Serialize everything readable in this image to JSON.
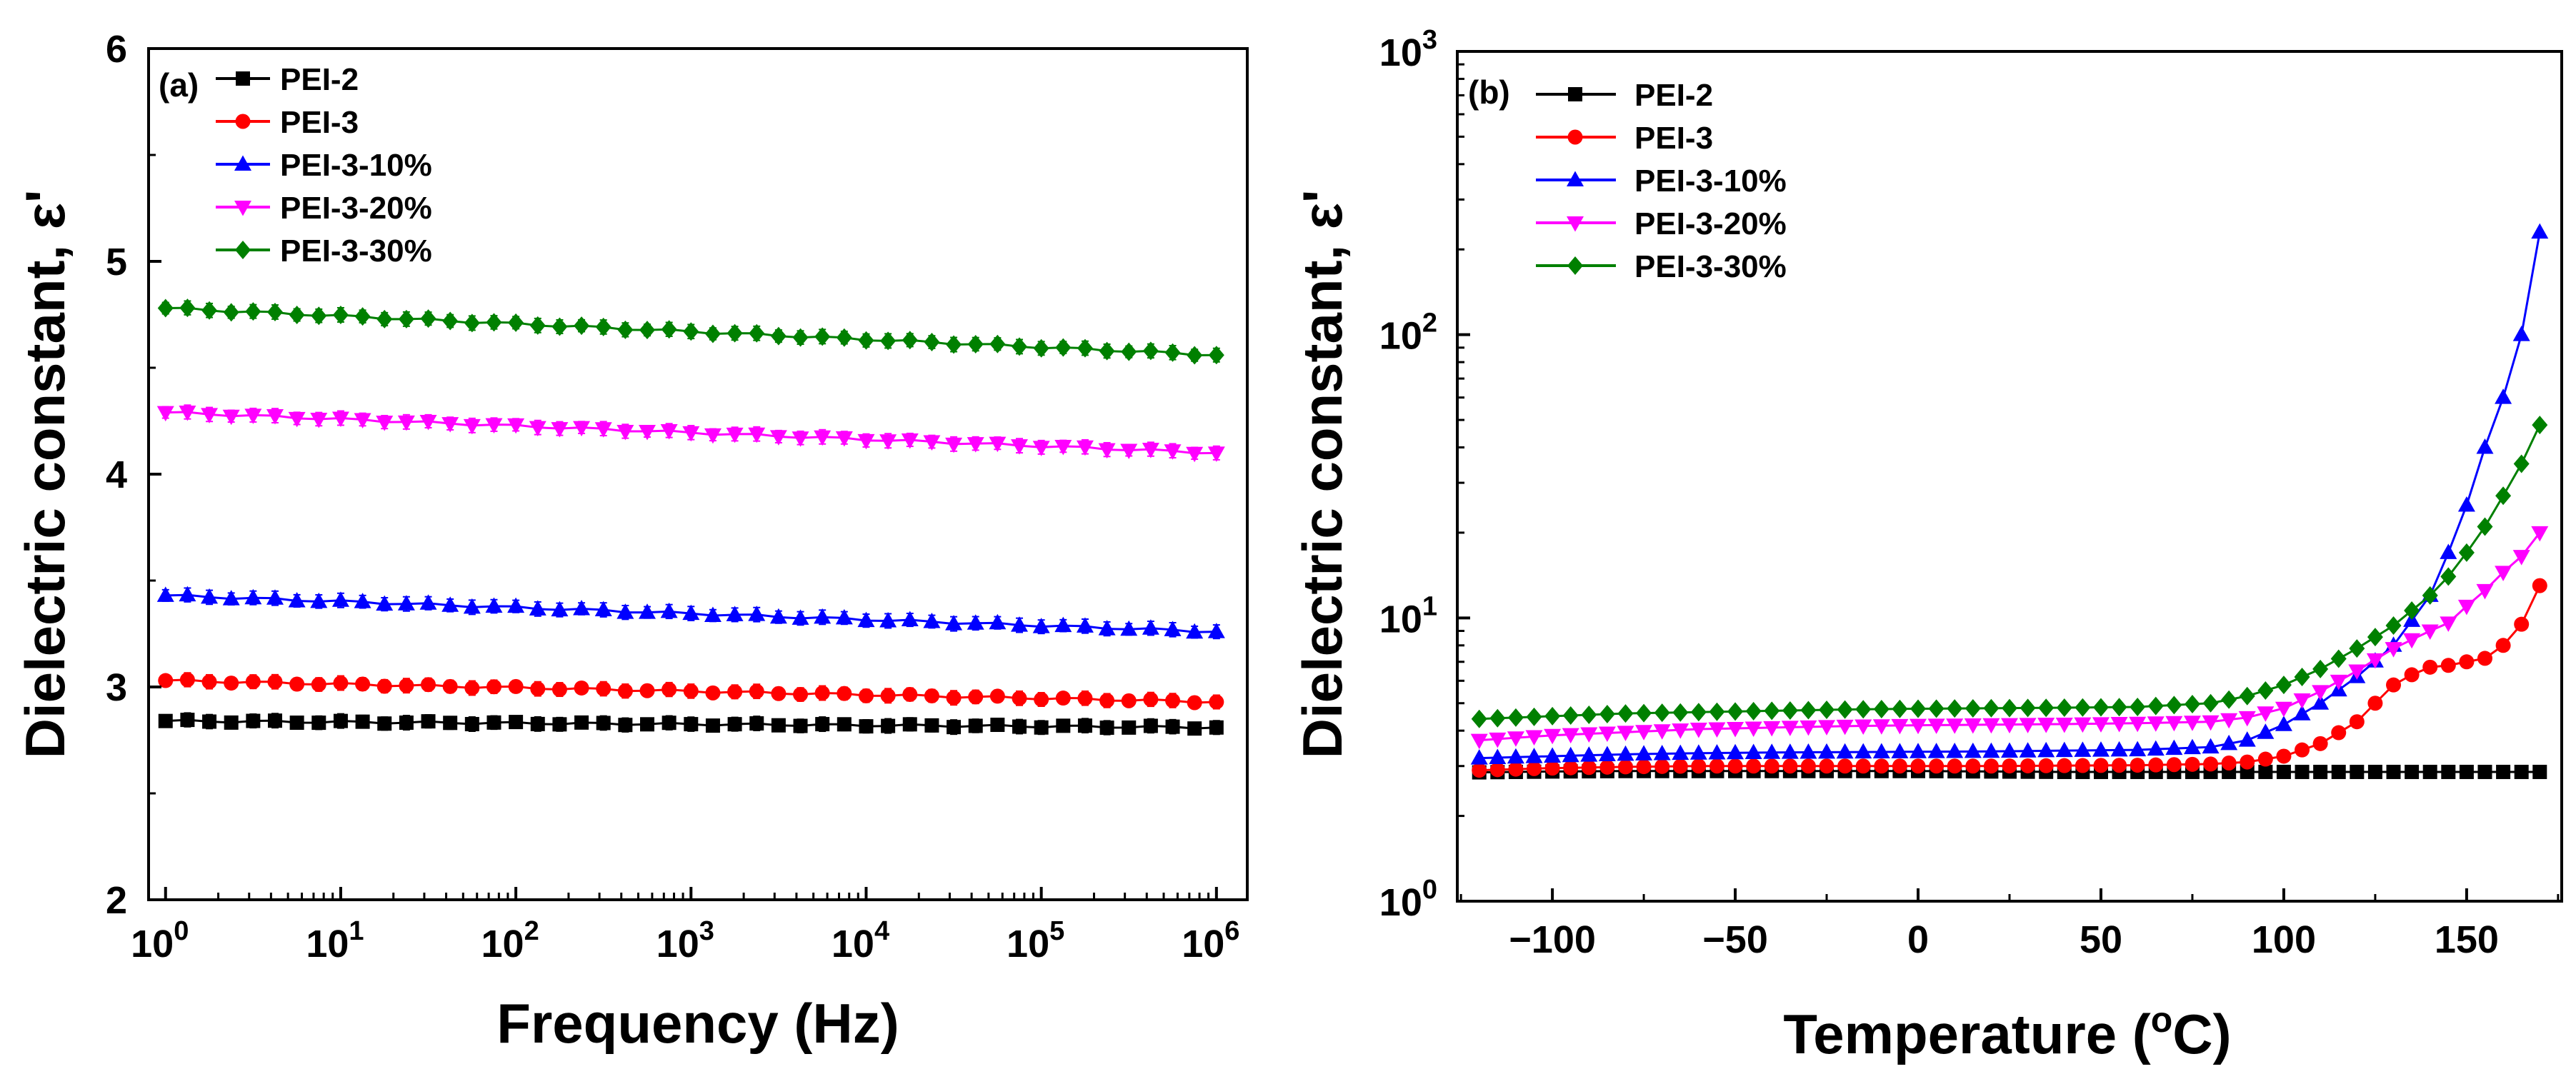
{
  "chart_data": [
    {
      "panel_label": "(a)",
      "type": "line",
      "xscale": "log",
      "xlabel": "Frequency (Hz)",
      "ylabel": "Dielectric constant, ε'",
      "xlim": [
        0.8,
        1500000
      ],
      "ylim": [
        2,
        6
      ],
      "x_ticks": [
        {
          "base": "10",
          "exp": "0",
          "value": 1
        },
        {
          "base": "10",
          "exp": "1",
          "value": 10
        },
        {
          "base": "10",
          "exp": "2",
          "value": 100
        },
        {
          "base": "10",
          "exp": "3",
          "value": 1000
        },
        {
          "base": "10",
          "exp": "4",
          "value": 10000
        },
        {
          "base": "10",
          "exp": "5",
          "value": 100000
        },
        {
          "base": "10",
          "exp": "6",
          "value": 1000000
        }
      ],
      "y_ticks": [
        {
          "label": "2",
          "value": 2
        },
        {
          "label": "3",
          "value": 3
        },
        {
          "label": "4",
          "value": 4
        },
        {
          "label": "5",
          "value": 5
        },
        {
          "label": "6",
          "value": 6
        }
      ],
      "legend_position": "top-left",
      "series": [
        {
          "name": "PEI-2",
          "color": "#000000",
          "marker": "square",
          "errorbars": true,
          "logf_start": 0,
          "logf_end": 6,
          "points": 49,
          "start": 2.84,
          "end": 2.81
        },
        {
          "name": "PEI-3",
          "color": "#ff0000",
          "marker": "circle",
          "errorbars": true,
          "logf_start": 0,
          "logf_end": 6,
          "points": 49,
          "start": 3.03,
          "end": 2.93
        },
        {
          "name": "PEI-3-10%",
          "color": "#0000ff",
          "marker": "triangle-up",
          "errorbars": true,
          "logf_start": 0,
          "logf_end": 6,
          "points": 49,
          "start": 3.43,
          "end": 3.26
        },
        {
          "name": "PEI-3-20%",
          "color": "#ff00ff",
          "marker": "triangle-down",
          "errorbars": true,
          "logf_start": 0,
          "logf_end": 6,
          "points": 49,
          "start": 4.29,
          "end": 4.1
        },
        {
          "name": "PEI-3-30%",
          "color": "#008000",
          "marker": "diamond",
          "errorbars": true,
          "logf_start": 0,
          "logf_end": 6,
          "points": 49,
          "start": 4.78,
          "end": 4.56
        }
      ]
    },
    {
      "panel_label": "(b)",
      "type": "line",
      "yscale": "log",
      "xlabel_main": "Temperature (",
      "xlabel_sup": "o",
      "xlabel_tail": "C)",
      "ylabel": "Dielectric constant, ε'",
      "xlim": [
        -126,
        176
      ],
      "ylim": [
        1,
        1000
      ],
      "x_ticks": [
        {
          "label": "−100",
          "value": -100
        },
        {
          "label": "−50",
          "value": -50
        },
        {
          "label": "0",
          "value": 0
        },
        {
          "label": "50",
          "value": 50
        },
        {
          "label": "100",
          "value": 100
        },
        {
          "label": "150",
          "value": 150
        }
      ],
      "y_ticks": [
        {
          "base": "10",
          "exp": "0",
          "value": 1
        },
        {
          "base": "10",
          "exp": "1",
          "value": 10
        },
        {
          "base": "10",
          "exp": "2",
          "value": 100
        },
        {
          "base": "10",
          "exp": "3",
          "value": 1000
        }
      ],
      "legend_position": "top-left",
      "series": [
        {
          "name": "PEI-2",
          "color": "#000000",
          "marker": "square",
          "points": [
            [
              -120,
              2.85
            ],
            [
              -100,
              2.87
            ],
            [
              -80,
              2.88
            ],
            [
              -60,
              2.88
            ],
            [
              -40,
              2.88
            ],
            [
              -20,
              2.88
            ],
            [
              0,
              2.88
            ],
            [
              20,
              2.87
            ],
            [
              40,
              2.86
            ],
            [
              60,
              2.86
            ],
            [
              80,
              2.86
            ],
            [
              100,
              2.86
            ],
            [
              120,
              2.86
            ],
            [
              140,
              2.86
            ],
            [
              160,
              2.86
            ],
            [
              170,
              2.86
            ]
          ]
        },
        {
          "name": "PEI-3",
          "color": "#ff0000",
          "marker": "circle",
          "points": [
            [
              -120,
              2.9
            ],
            [
              -100,
              2.95
            ],
            [
              -80,
              2.98
            ],
            [
              -60,
              3.0
            ],
            [
              -40,
              3.0
            ],
            [
              -20,
              3.0
            ],
            [
              0,
              3.0
            ],
            [
              20,
              3.0
            ],
            [
              40,
              3.01
            ],
            [
              60,
              3.02
            ],
            [
              80,
              3.05
            ],
            [
              90,
              3.1
            ],
            [
              100,
              3.25
            ],
            [
              110,
              3.6
            ],
            [
              120,
              4.3
            ],
            [
              125,
              5.0
            ],
            [
              130,
              5.8
            ],
            [
              135,
              6.3
            ],
            [
              140,
              6.7
            ],
            [
              145,
              6.8
            ],
            [
              150,
              7.0
            ],
            [
              155,
              7.2
            ],
            [
              160,
              8.0
            ],
            [
              165,
              9.5
            ],
            [
              170,
              13.0
            ]
          ]
        },
        {
          "name": "PEI-3-10%",
          "color": "#0000ff",
          "marker": "triangle-up",
          "points": [
            [
              -120,
              3.2
            ],
            [
              -100,
              3.25
            ],
            [
              -80,
              3.3
            ],
            [
              -60,
              3.33
            ],
            [
              -40,
              3.35
            ],
            [
              -20,
              3.36
            ],
            [
              0,
              3.37
            ],
            [
              20,
              3.38
            ],
            [
              40,
              3.4
            ],
            [
              60,
              3.42
            ],
            [
              80,
              3.5
            ],
            [
              90,
              3.7
            ],
            [
              100,
              4.2
            ],
            [
              110,
              5.0
            ],
            [
              120,
              6.2
            ],
            [
              130,
              8.0
            ],
            [
              140,
              12.0
            ],
            [
              145,
              17.0
            ],
            [
              150,
              25.0
            ],
            [
              155,
              40.0
            ],
            [
              160,
              60.0
            ],
            [
              165,
              100.0
            ],
            [
              170,
              230.0
            ]
          ]
        },
        {
          "name": "PEI-3-20%",
          "color": "#ff00ff",
          "marker": "triangle-down",
          "points": [
            [
              -120,
              3.7
            ],
            [
              -100,
              3.85
            ],
            [
              -80,
              3.95
            ],
            [
              -60,
              4.05
            ],
            [
              -40,
              4.1
            ],
            [
              -20,
              4.15
            ],
            [
              0,
              4.18
            ],
            [
              20,
              4.2
            ],
            [
              40,
              4.22
            ],
            [
              60,
              4.25
            ],
            [
              80,
              4.3
            ],
            [
              90,
              4.45
            ],
            [
              100,
              4.8
            ],
            [
              110,
              5.5
            ],
            [
              120,
              6.5
            ],
            [
              130,
              7.8
            ],
            [
              140,
              9.0
            ],
            [
              145,
              9.6
            ],
            [
              150,
              11.0
            ],
            [
              155,
              12.5
            ],
            [
              160,
              14.5
            ],
            [
              165,
              16.5
            ],
            [
              170,
              20.0
            ]
          ]
        },
        {
          "name": "PEI-3-30%",
          "color": "#008000",
          "marker": "diamond",
          "points": [
            [
              -120,
              4.4
            ],
            [
              -100,
              4.5
            ],
            [
              -80,
              4.6
            ],
            [
              -60,
              4.65
            ],
            [
              -40,
              4.7
            ],
            [
              -20,
              4.75
            ],
            [
              0,
              4.78
            ],
            [
              20,
              4.8
            ],
            [
              40,
              4.82
            ],
            [
              60,
              4.85
            ],
            [
              80,
              5.0
            ],
            [
              90,
              5.3
            ],
            [
              100,
              5.8
            ],
            [
              110,
              6.6
            ],
            [
              120,
              7.8
            ],
            [
              130,
              9.4
            ],
            [
              140,
              12.0
            ],
            [
              145,
              14.0
            ],
            [
              150,
              17.0
            ],
            [
              155,
              21.0
            ],
            [
              160,
              27.0
            ],
            [
              165,
              35.0
            ],
            [
              170,
              48.0
            ]
          ]
        }
      ]
    }
  ]
}
